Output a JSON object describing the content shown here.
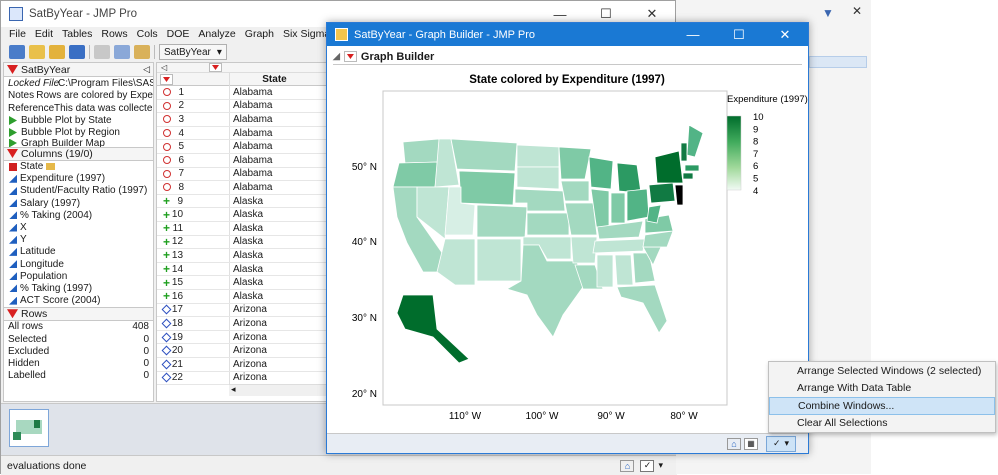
{
  "main_window": {
    "title": "SatByYear - JMP Pro",
    "menu": [
      "File",
      "Edit",
      "Tables",
      "Rows",
      "Cols",
      "DOE",
      "Analyze",
      "Graph",
      "Six Sigma Tools"
    ],
    "toolbar_combo": "SatByYear"
  },
  "table_panel": {
    "name": "SatByYear",
    "locked_file_label": "Locked File",
    "locked_file_value": "C:\\Program Files\\SAS",
    "notes_label": "Notes",
    "notes_value": "Rows are colored by Expe",
    "reference_label": "Reference",
    "reference_value": "This data was collecte",
    "scripts": [
      "Bubble Plot by State",
      "Bubble Plot by Region",
      "Graph Builder Map"
    ]
  },
  "columns_panel": {
    "header": "Columns (19/0)",
    "columns": [
      {
        "name": "State",
        "type": "nominal"
      },
      {
        "name": "Expenditure (1997)",
        "type": "continuous"
      },
      {
        "name": "Student/Faculty Ratio (1997)",
        "type": "continuous"
      },
      {
        "name": "Salary (1997)",
        "type": "continuous"
      },
      {
        "name": "% Taking (2004)",
        "type": "continuous"
      },
      {
        "name": "X",
        "type": "continuous"
      },
      {
        "name": "Y",
        "type": "continuous"
      },
      {
        "name": "Latitude",
        "type": "continuous"
      },
      {
        "name": "Longitude",
        "type": "continuous"
      },
      {
        "name": "Population",
        "type": "continuous"
      },
      {
        "name": "% Taking (1997)",
        "type": "continuous"
      },
      {
        "name": "ACT Score (2004)",
        "type": "continuous"
      }
    ]
  },
  "rows_panel": {
    "header": "Rows",
    "items": [
      {
        "label": "All rows",
        "value": "408"
      },
      {
        "label": "Selected",
        "value": "0"
      },
      {
        "label": "Excluded",
        "value": "0"
      },
      {
        "label": "Hidden",
        "value": "0"
      },
      {
        "label": "Labelled",
        "value": "0"
      }
    ]
  },
  "grid": {
    "column_header": "State",
    "rows": [
      {
        "n": "1",
        "state": "Alabama",
        "marker": "circle"
      },
      {
        "n": "2",
        "state": "Alabama",
        "marker": "circle"
      },
      {
        "n": "3",
        "state": "Alabama",
        "marker": "circle"
      },
      {
        "n": "4",
        "state": "Alabama",
        "marker": "circle"
      },
      {
        "n": "5",
        "state": "Alabama",
        "marker": "circle"
      },
      {
        "n": "6",
        "state": "Alabama",
        "marker": "circle"
      },
      {
        "n": "7",
        "state": "Alabama",
        "marker": "circle"
      },
      {
        "n": "8",
        "state": "Alabama",
        "marker": "circle"
      },
      {
        "n": "9",
        "state": "Alaska",
        "marker": "plus"
      },
      {
        "n": "10",
        "state": "Alaska",
        "marker": "plus"
      },
      {
        "n": "11",
        "state": "Alaska",
        "marker": "plus"
      },
      {
        "n": "12",
        "state": "Alaska",
        "marker": "plus"
      },
      {
        "n": "13",
        "state": "Alaska",
        "marker": "plus"
      },
      {
        "n": "14",
        "state": "Alaska",
        "marker": "plus"
      },
      {
        "n": "15",
        "state": "Alaska",
        "marker": "plus"
      },
      {
        "n": "16",
        "state": "Alaska",
        "marker": "plus"
      },
      {
        "n": "17",
        "state": "Arizona",
        "marker": "diamond"
      },
      {
        "n": "18",
        "state": "Arizona",
        "marker": "diamond"
      },
      {
        "n": "19",
        "state": "Arizona",
        "marker": "diamond"
      },
      {
        "n": "20",
        "state": "Arizona",
        "marker": "diamond"
      },
      {
        "n": "21",
        "state": "Arizona",
        "marker": "diamond"
      },
      {
        "n": "22",
        "state": "Arizona",
        "marker": "diamond"
      }
    ]
  },
  "status_bar": {
    "text": "evaluations done"
  },
  "graph_window": {
    "title": "SatByYear - Graph Builder - JMP Pro",
    "header": "Graph Builder",
    "chart_title": "State colored by Expenditure (1997)",
    "legend_title": "Expenditure (1997)",
    "legend_ticks": [
      "10",
      "9",
      "8",
      "7",
      "6",
      "5",
      "4"
    ],
    "y_ticks": [
      "50° N",
      "40° N",
      "30° N",
      "20° N"
    ],
    "x_ticks": [
      "110° W",
      "100° W",
      "90° W",
      "80° W"
    ]
  },
  "context_menu": {
    "items": [
      "Arrange Selected Windows (2 selected)",
      "Arrange With Data Table",
      "Combine Windows...",
      "Clear All Selections"
    ]
  },
  "colors": {
    "accent": "#1a79d4",
    "map_low": "#eef8f4",
    "map_high": "#006d2c",
    "menu_hover": "#cfe4f7"
  }
}
